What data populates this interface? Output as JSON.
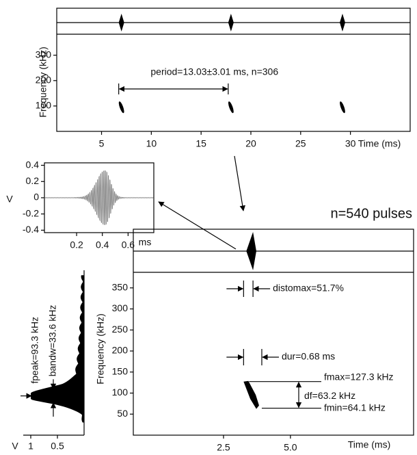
{
  "chart_data": [
    {
      "type": "spectrogram",
      "ylabel": "Frequency (kHz)",
      "xlabel": "Time (ms)",
      "xlim": [
        0.5,
        36
      ],
      "ylim": [
        0,
        380
      ],
      "xticks": [
        5,
        10,
        15,
        20,
        25,
        30
      ],
      "yticks": [
        100,
        200,
        300
      ],
      "x": [
        7.0,
        18.0,
        29.2
      ],
      "values": [
        95,
        95,
        95
      ],
      "annotation": "period=13.03±3.01 ms, n=306"
    },
    {
      "type": "waveform",
      "ylabel": "V",
      "xlabel": "ms",
      "xlim": [
        -0.05,
        0.8
      ],
      "ylim": [
        -0.43,
        0.43
      ],
      "xticks": [
        0.2,
        0.4,
        0.6
      ],
      "yticks": [
        0.4,
        0.2,
        0,
        -0.2,
        -0.4
      ],
      "peak_time": 0.42,
      "peak_amplitude": 0.38
    },
    {
      "type": "pulse",
      "title": "n=540 pulses",
      "ylabel": "Frequency (kHz)",
      "xlabel": "Time (ms)",
      "xlim": [
        -0.87,
        9.6
      ],
      "ylim": [
        0,
        387
      ],
      "xticks": [
        {
          "value": 2.5,
          "label": "2.5"
        },
        {
          "value": 5,
          "label": "5.0"
        }
      ],
      "yticks": [
        50,
        100,
        150,
        200,
        250,
        300,
        350
      ],
      "pulse_start": 3.25,
      "distomax": {
        "value": 51.7,
        "label": "distomax=51.7%"
      },
      "dur": {
        "value": 0.68,
        "label": "dur=0.68 ms"
      },
      "fmax": {
        "value": 127.3,
        "label": "fmax=127.3 kHz"
      },
      "df": {
        "value": 63.2,
        "label": "df=63.2 kHz"
      },
      "fmin": {
        "value": 64.1,
        "label": "fmin=64.1 kHz"
      }
    },
    {
      "type": "spectrum",
      "xlabel": "V",
      "xlim": [
        0,
        1
      ],
      "ylim": [
        0,
        387
      ],
      "xticks": [
        1,
        0.5
      ],
      "fpeak": {
        "value": 93.3,
        "label": "fpeak=93.3 kHz"
      },
      "bandw": {
        "value": 33.6,
        "label": "bandw=33.6 kHz"
      }
    }
  ]
}
